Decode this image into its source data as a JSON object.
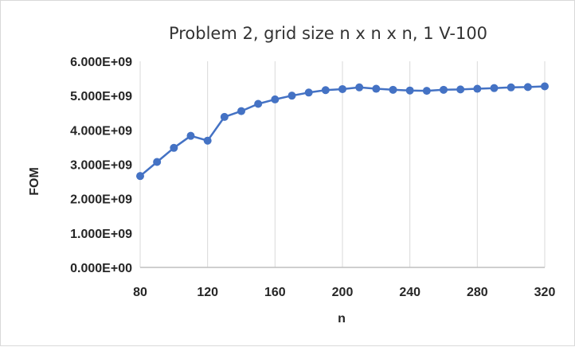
{
  "chart_data": {
    "type": "line",
    "title": "Problem 2, grid size n x n x n, 1 V-100",
    "xlabel": "n",
    "ylabel": "FOM",
    "xlim": [
      80,
      320
    ],
    "ylim": [
      0,
      6000000000
    ],
    "x_ticks": [
      80,
      120,
      160,
      200,
      240,
      280,
      320
    ],
    "y_ticks": [
      0,
      1000000000,
      2000000000,
      3000000000,
      4000000000,
      5000000000,
      6000000000
    ],
    "x_tick_labels": [
      "80",
      "120",
      "160",
      "200",
      "240",
      "280",
      "320"
    ],
    "y_tick_labels": [
      "0.000E+00",
      "1.000E+09",
      "2.000E+09",
      "3.000E+09",
      "4.000E+09",
      "5.000E+09",
      "6.000E+09"
    ],
    "grid": "vertical",
    "legend": "none",
    "series": [
      {
        "color": "#4472c4",
        "x": [
          80,
          90,
          100,
          110,
          120,
          130,
          140,
          150,
          160,
          170,
          180,
          190,
          200,
          210,
          220,
          230,
          240,
          250,
          260,
          270,
          280,
          290,
          300,
          310,
          320
        ],
        "y": [
          2660000000,
          3070000000,
          3480000000,
          3830000000,
          3690000000,
          4380000000,
          4550000000,
          4760000000,
          4890000000,
          5000000000,
          5090000000,
          5160000000,
          5190000000,
          5240000000,
          5200000000,
          5170000000,
          5150000000,
          5140000000,
          5170000000,
          5180000000,
          5200000000,
          5220000000,
          5240000000,
          5250000000,
          5270000000
        ]
      }
    ]
  }
}
